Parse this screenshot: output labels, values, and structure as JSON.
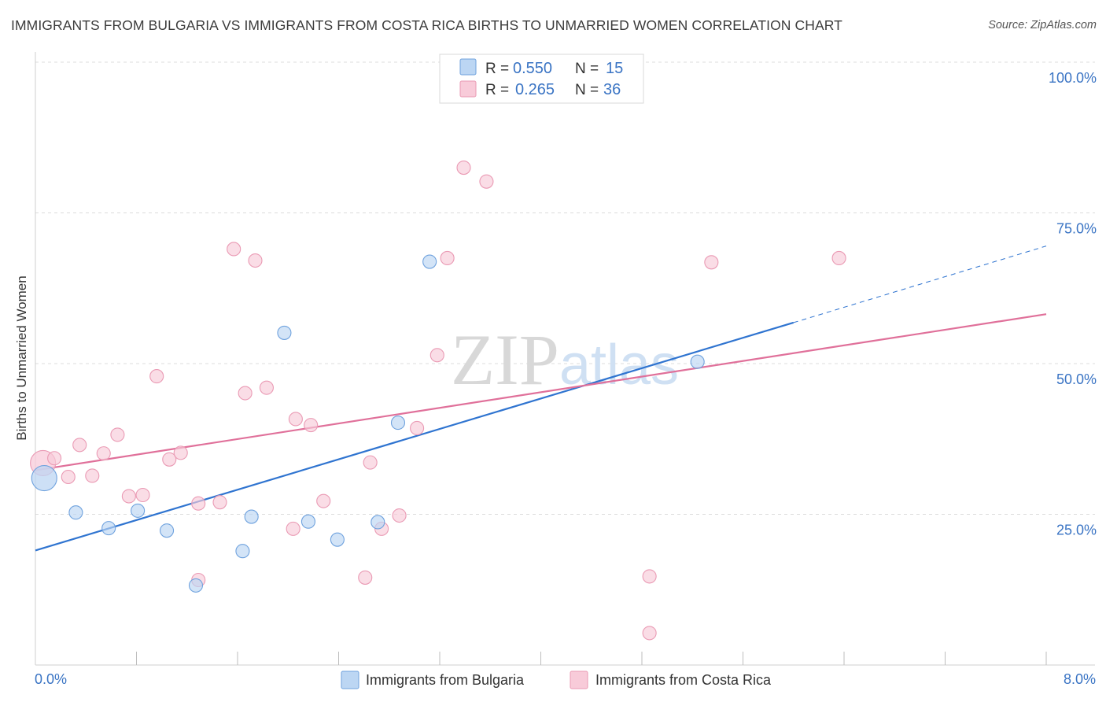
{
  "chart_data": {
    "type": "scatter",
    "title": "IMMIGRANTS FROM BULGARIA VS IMMIGRANTS FROM COSTA RICA BIRTHS TO UNMARRIED WOMEN CORRELATION CHART",
    "source": "Source: ZipAtlas.com",
    "xlabel": "",
    "ylabel": "Births to Unmarried Women",
    "xlim": [
      0,
      8
    ],
    "ylim": [
      0,
      100
    ],
    "x_tick_labels": [
      "0.0%",
      "8.0%"
    ],
    "y_ticks": [
      25,
      50,
      75,
      100
    ],
    "y_tick_labels": [
      "25.0%",
      "50.0%",
      "75.0%",
      "100.0%"
    ],
    "watermark": "ZIPatlas",
    "legend_position": "bottom-center",
    "stats": [
      {
        "r_label": "R =",
        "r_value": "0.550",
        "n_label": "N =",
        "n_value": "15"
      },
      {
        "r_label": "R =",
        "r_value": "0.265",
        "n_label": "N =",
        "n_value": "36"
      }
    ],
    "series": [
      {
        "name": "Immigrants from Bulgaria",
        "color": "#6fa2de",
        "fill": "#bcd6f3",
        "line_color": "#2f74d0",
        "trend": {
          "x0": 0,
          "y0": 19.0,
          "x1": 6.0,
          "y1": 56.8,
          "dash_x1": 8.0,
          "dash_y1": 69.5
        },
        "points": [
          {
            "x": 0.07,
            "y": 31.0,
            "big": true
          },
          {
            "x": 0.32,
            "y": 25.3
          },
          {
            "x": 0.58,
            "y": 22.7
          },
          {
            "x": 0.81,
            "y": 25.6
          },
          {
            "x": 1.04,
            "y": 22.3
          },
          {
            "x": 1.27,
            "y": 13.2
          },
          {
            "x": 1.64,
            "y": 18.9
          },
          {
            "x": 1.71,
            "y": 24.6
          },
          {
            "x": 1.97,
            "y": 55.1
          },
          {
            "x": 2.16,
            "y": 23.8
          },
          {
            "x": 2.39,
            "y": 20.8
          },
          {
            "x": 2.71,
            "y": 23.7
          },
          {
            "x": 2.87,
            "y": 40.2
          },
          {
            "x": 3.12,
            "y": 66.9
          },
          {
            "x": 5.24,
            "y": 50.3
          }
        ]
      },
      {
        "name": "Immigrants from Costa Rica",
        "color": "#ea9ab4",
        "fill": "#f8cbd9",
        "line_color": "#e0709a",
        "trend": {
          "x0": 0,
          "y0": 32.3,
          "x1": 8.0,
          "y1": 58.2
        },
        "points": [
          {
            "x": 0.06,
            "y": 33.5,
            "big": true
          },
          {
            "x": 0.15,
            "y": 34.3
          },
          {
            "x": 0.26,
            "y": 31.2
          },
          {
            "x": 0.35,
            "y": 36.5
          },
          {
            "x": 0.45,
            "y": 31.4
          },
          {
            "x": 0.54,
            "y": 35.1
          },
          {
            "x": 0.65,
            "y": 38.2
          },
          {
            "x": 0.74,
            "y": 28.0
          },
          {
            "x": 0.85,
            "y": 28.2
          },
          {
            "x": 0.96,
            "y": 47.9
          },
          {
            "x": 1.06,
            "y": 34.1
          },
          {
            "x": 1.15,
            "y": 35.2
          },
          {
            "x": 1.29,
            "y": 14.1
          },
          {
            "x": 1.29,
            "y": 26.8
          },
          {
            "x": 1.46,
            "y": 27.0
          },
          {
            "x": 1.57,
            "y": 69.0
          },
          {
            "x": 1.66,
            "y": 45.1
          },
          {
            "x": 1.74,
            "y": 67.1
          },
          {
            "x": 1.83,
            "y": 46.0
          },
          {
            "x": 2.04,
            "y": 22.6
          },
          {
            "x": 2.06,
            "y": 40.8
          },
          {
            "x": 2.18,
            "y": 39.8
          },
          {
            "x": 2.28,
            "y": 27.2
          },
          {
            "x": 2.61,
            "y": 14.5
          },
          {
            "x": 2.65,
            "y": 33.6
          },
          {
            "x": 2.74,
            "y": 22.6
          },
          {
            "x": 2.88,
            "y": 24.8
          },
          {
            "x": 3.02,
            "y": 39.3
          },
          {
            "x": 3.18,
            "y": 51.4
          },
          {
            "x": 3.26,
            "y": 67.5
          },
          {
            "x": 3.39,
            "y": 82.5
          },
          {
            "x": 3.57,
            "y": 80.2
          },
          {
            "x": 4.86,
            "y": 14.7
          },
          {
            "x": 4.86,
            "y": 5.3
          },
          {
            "x": 5.35,
            "y": 66.8
          },
          {
            "x": 6.36,
            "y": 67.5
          }
        ]
      }
    ]
  }
}
